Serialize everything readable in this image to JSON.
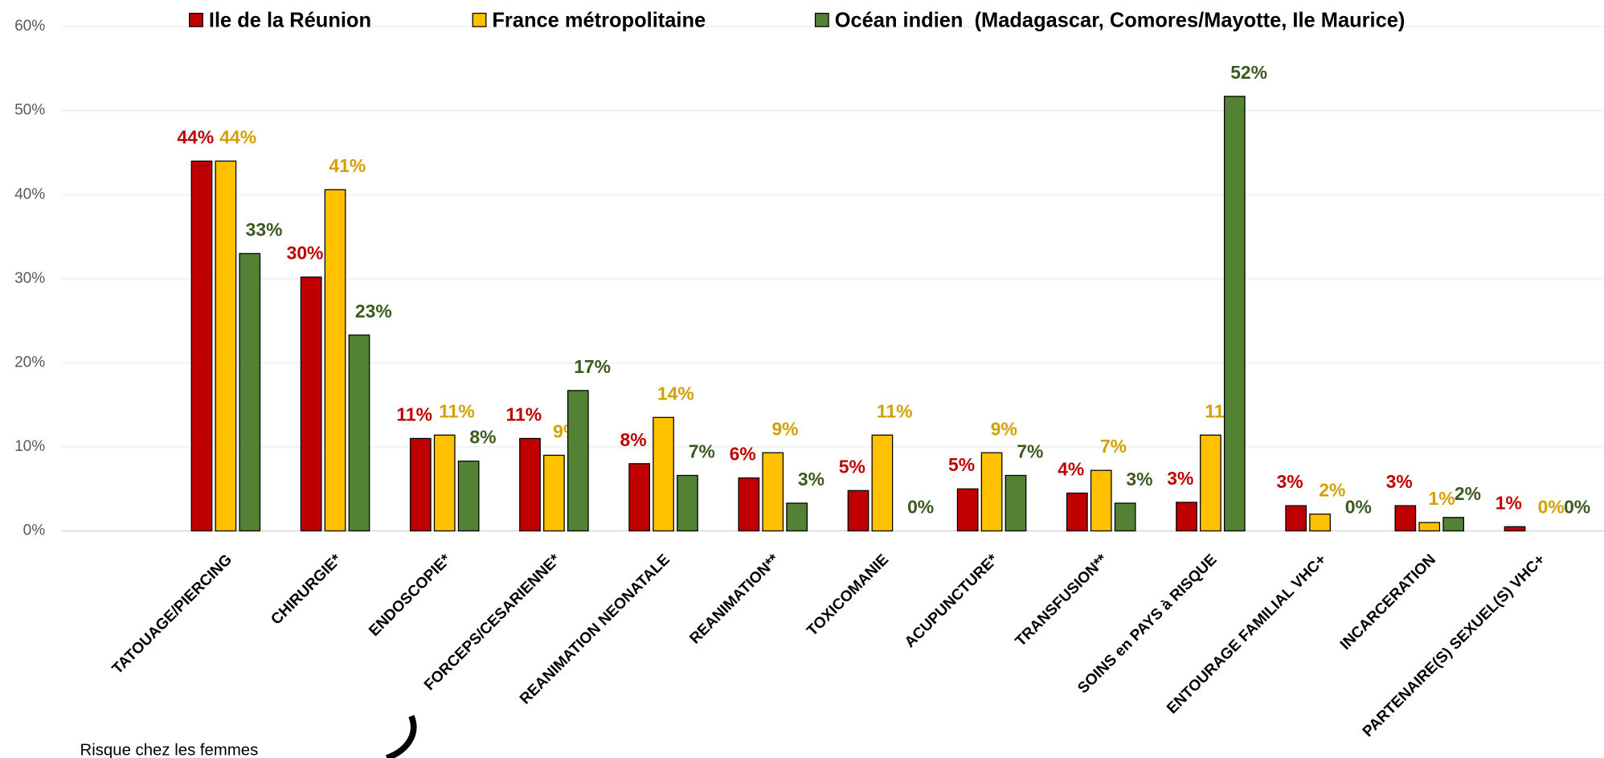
{
  "chart_data": {
    "type": "bar",
    "categories": [
      "TATOUAGE/PIERCING",
      "CHIRURGIE*",
      "ENDOSCOPIE*",
      "FORCEPS/CESARIENNE*",
      "REANIMATION NEONATALE",
      "REANIMATION**",
      "TOXICOMANIE",
      "ACUPUNCTURE*",
      "TRANSFUSION**",
      "SOINS en PAYS à RISQUE",
      "ENTOURAGE FAMILIAL VHC+",
      "INCARCERATION",
      "PARTENAIRE(S) SEXUEL(S) VHC+"
    ],
    "series": [
      {
        "name": "Ile de la Réunion",
        "color": "#c00000",
        "label_color": "#c00000",
        "values": [
          44,
          30.2,
          11,
          11,
          8,
          6.3,
          4.8,
          5,
          4.5,
          3.4,
          3,
          3,
          0.5
        ],
        "value_labels": [
          "44%",
          "30%",
          "11%",
          "11%",
          "8%",
          "6%",
          "5%",
          "5%",
          "4%",
          "3%",
          "3%",
          "3%",
          "1%"
        ]
      },
      {
        "name": "France métropolitaine",
        "color": "#ffc000",
        "label_color": "#d4a000",
        "values": [
          44,
          40.6,
          11.4,
          9,
          13.5,
          9.3,
          11.4,
          9.3,
          7.2,
          11.4,
          2,
          1,
          0
        ],
        "value_labels": [
          "44%",
          "41%",
          "11%",
          "9%",
          "14%",
          "9%",
          "11%",
          "9%",
          "7%",
          "11%",
          "2%",
          "1%",
          "0%"
        ]
      },
      {
        "name": "Océan indien  (Madagascar, Comores/Mayotte, Ile Maurice)",
        "color": "#548235",
        "label_color": "#3a5a1e",
        "values": [
          33,
          23.3,
          8.3,
          16.7,
          6.6,
          3.3,
          0,
          6.6,
          3.3,
          51.7,
          0,
          1.6,
          0
        ],
        "value_labels": [
          "33%",
          "23%",
          "8%",
          "17%",
          "7%",
          "3%",
          "0%",
          "7%",
          "3%",
          "52%",
          "0%",
          "2%",
          "0%"
        ]
      }
    ],
    "ylim": [
      0,
      60
    ],
    "yticks": [
      {
        "value": 0,
        "label": "0%"
      },
      {
        "value": 10,
        "label": "10%"
      },
      {
        "value": 20,
        "label": "20%"
      },
      {
        "value": 30,
        "label": "30%"
      },
      {
        "value": 40,
        "label": "40%"
      },
      {
        "value": 50,
        "label": "50%"
      },
      {
        "value": 60,
        "label": "60%"
      }
    ],
    "grid": true,
    "legend": "top",
    "annotation": "Risque chez les femmes"
  }
}
